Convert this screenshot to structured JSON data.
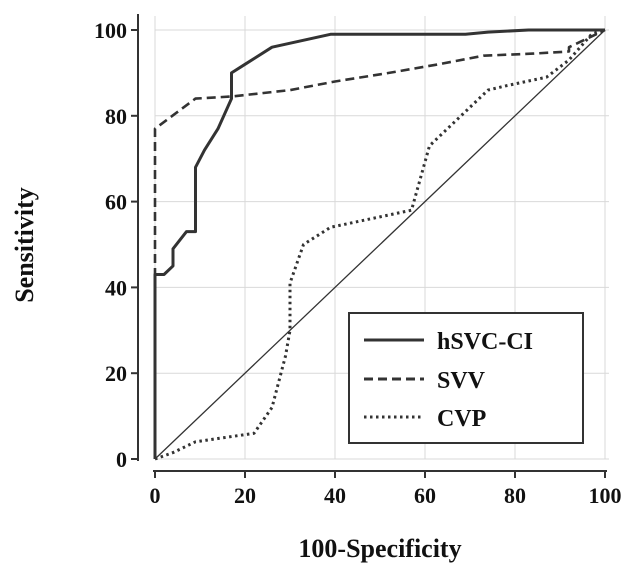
{
  "chart_data": {
    "type": "line",
    "title": "",
    "xlabel": "100-Specificity",
    "ylabel": "Sensitivity",
    "xlim": [
      0,
      100
    ],
    "ylim": [
      0,
      100
    ],
    "xticks": [
      0,
      20,
      40,
      60,
      80,
      100
    ],
    "yticks": [
      0,
      20,
      40,
      60,
      80,
      100
    ],
    "grid": true,
    "legend_position": "bottom-right",
    "series": [
      {
        "name": "hSVC-CI",
        "style": "solid",
        "color": "#333333",
        "x": [
          0,
          0,
          2,
          4,
          4,
          7,
          7,
          9,
          9,
          11,
          14,
          17,
          17,
          20,
          26,
          39,
          69,
          74,
          83,
          100
        ],
        "y": [
          0,
          43,
          43,
          45,
          49,
          53,
          53,
          53,
          68,
          72,
          77,
          84,
          90,
          92,
          96,
          99,
          99,
          99.5,
          100,
          100
        ]
      },
      {
        "name": "SVV",
        "style": "dashed",
        "color": "#333333",
        "x": [
          0,
          0,
          9,
          17,
          30,
          40,
          52,
          63,
          73,
          84,
          92,
          92,
          100
        ],
        "y": [
          0,
          77,
          84,
          84.5,
          86,
          88,
          90,
          92,
          94,
          94.5,
          95,
          96,
          100
        ]
      },
      {
        "name": "CVP",
        "style": "dotted",
        "color": "#333333",
        "x": [
          0,
          4,
          9,
          22,
          26,
          29,
          30,
          30,
          33,
          39,
          57,
          61,
          74,
          78,
          87,
          92,
          97,
          100
        ],
        "y": [
          0,
          1.5,
          4,
          6,
          12,
          24,
          30,
          41,
          50,
          54,
          58,
          73,
          86,
          87,
          89,
          93,
          99,
          100
        ]
      },
      {
        "name": "",
        "style": "reference",
        "color": "#333333",
        "x": [
          0,
          100
        ],
        "y": [
          0,
          100
        ]
      }
    ]
  }
}
